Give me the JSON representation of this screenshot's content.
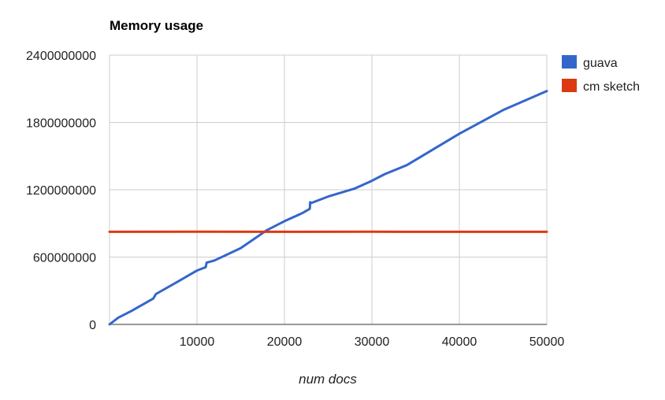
{
  "chart_data": {
    "type": "line",
    "title": "Memory usage",
    "xlabel": "num docs",
    "ylabel": "",
    "xlim": [
      0,
      50000
    ],
    "ylim": [
      0,
      2400000000
    ],
    "xticks": [
      10000,
      20000,
      30000,
      40000,
      50000
    ],
    "yticks": [
      0,
      600000000,
      1200000000,
      1800000000,
      2400000000
    ],
    "grid": true,
    "legend": "right",
    "series": [
      {
        "name": "guava",
        "color": "#3366cc",
        "x": [
          0,
          1000,
          2500,
          5000,
          5300,
          8000,
          10000,
          11000,
          11100,
          12000,
          15000,
          18000,
          20000,
          22000,
          22900,
          22950,
          23000,
          25000,
          28000,
          30000,
          31500,
          34000,
          40000,
          45000,
          50000
        ],
        "y": [
          0,
          60000000,
          120000000,
          230000000,
          270000000,
          390000000,
          480000000,
          510000000,
          550000000,
          570000000,
          680000000,
          840000000,
          920000000,
          990000000,
          1030000000,
          1090000000,
          1080000000,
          1140000000,
          1210000000,
          1280000000,
          1340000000,
          1420000000,
          1700000000,
          1910000000,
          2080000000
        ]
      },
      {
        "name": "cm sketch",
        "color": "#dc3912",
        "x": [
          0,
          10000,
          20000,
          30000,
          40000,
          50000
        ],
        "y": [
          825000000,
          826000000,
          825000000,
          826000000,
          825000000,
          825000000
        ]
      }
    ]
  }
}
